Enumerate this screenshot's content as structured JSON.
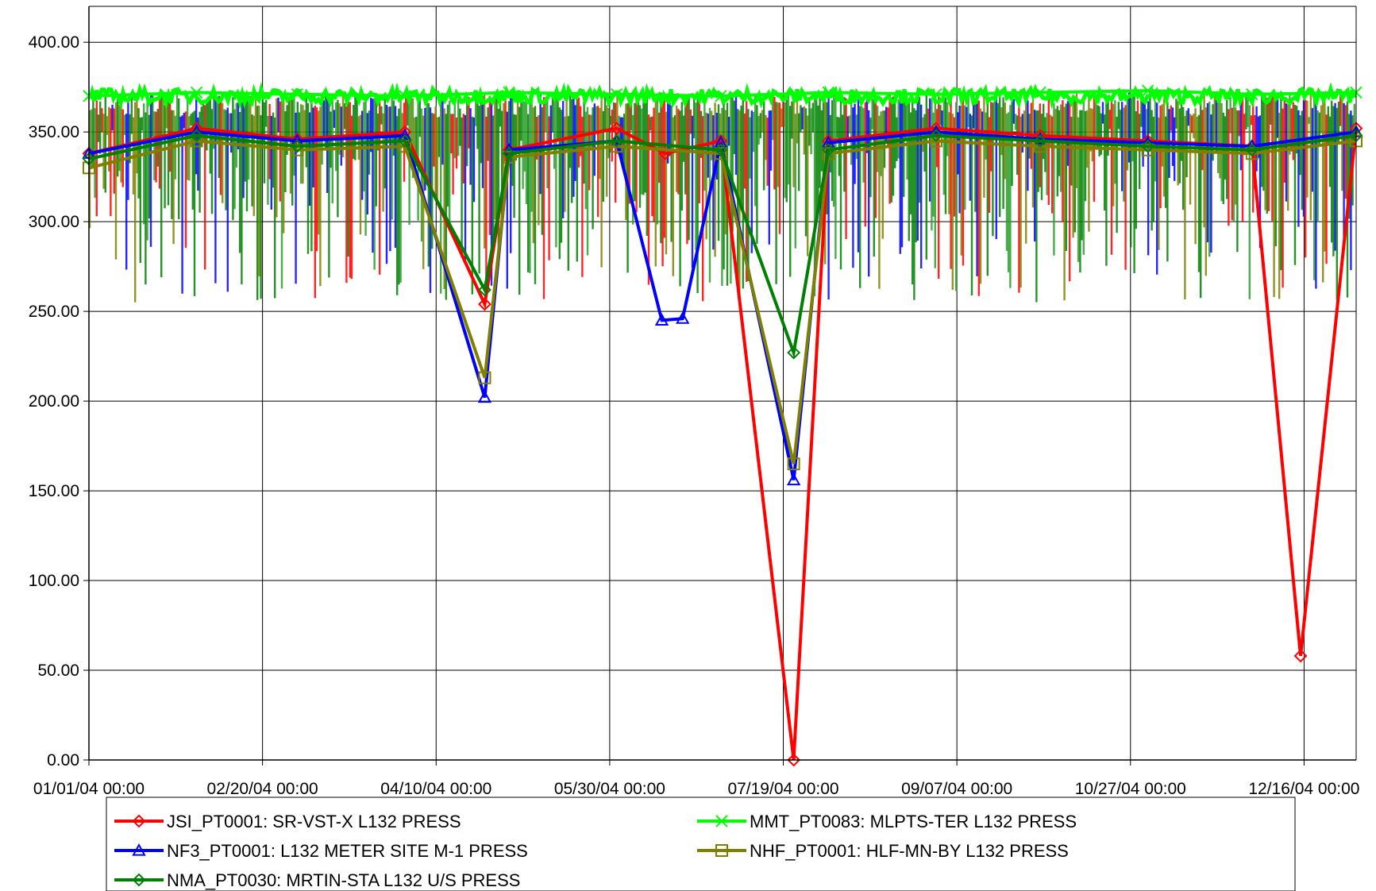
{
  "chart_data": {
    "type": "line",
    "title": "",
    "xlabel": "",
    "ylabel": "",
    "ylim": [
      0,
      420
    ],
    "xlim": [
      "2004-01-01",
      "2004-12-31"
    ],
    "yticks": [
      0,
      50,
      100,
      150,
      200,
      250,
      300,
      350,
      400
    ],
    "ytick_labels": [
      "0.00",
      "50.00",
      "100.00",
      "150.00",
      "200.00",
      "250.00",
      "300.00",
      "350.00",
      "400.00"
    ],
    "xticks": [
      "2004-01-01",
      "2004-02-20",
      "2004-04-10",
      "2004-05-30",
      "2004-07-19",
      "2004-09-07",
      "2004-10-27",
      "2004-12-16"
    ],
    "xtick_labels": [
      "01/01/04 00:00",
      "02/20/04 00:00",
      "04/10/04 00:00",
      "05/30/04 00:00",
      "07/19/04 00:00",
      "09/07/04 00:00",
      "10/27/04 00:00",
      "12/16/04 00:00"
    ],
    "grid": true,
    "legend_position": "bottom",
    "series": [
      {
        "name": "JSI_PT0001:  SR-VST-X L132 PRESS",
        "color": "#ff0000",
        "marker": "diamond",
        "x": [
          "2004-01-01",
          "2004-02-01",
          "2004-03-01",
          "2004-04-01",
          "2004-04-24",
          "2004-05-01",
          "2004-06-01",
          "2004-06-15",
          "2004-07-01",
          "2004-07-22",
          "2004-08-01",
          "2004-09-01",
          "2004-10-01",
          "2004-11-01",
          "2004-12-01",
          "2004-12-15",
          "2004-12-31"
        ],
        "y": [
          338,
          352,
          346,
          350,
          254,
          340,
          352,
          338,
          345,
          0,
          345,
          352,
          348,
          345,
          342,
          58,
          352
        ]
      },
      {
        "name": "MMT_PT0083:  MLPTS-TER L132 PRESS",
        "color": "#00ff00",
        "marker": "x",
        "x": [
          "2004-01-01",
          "2004-02-01",
          "2004-03-01",
          "2004-04-01",
          "2004-05-01",
          "2004-06-01",
          "2004-07-01",
          "2004-08-01",
          "2004-09-01",
          "2004-10-01",
          "2004-11-01",
          "2004-12-01",
          "2004-12-31"
        ],
        "y": [
          370,
          372,
          371,
          370,
          372,
          371,
          370,
          372,
          371,
          372,
          373,
          371,
          372
        ]
      },
      {
        "name": "NF3_PT0001:  L132 METER SITE M-1 PRESS",
        "color": "#0000ff",
        "marker": "triangle",
        "x": [
          "2004-01-01",
          "2004-02-01",
          "2004-03-01",
          "2004-04-01",
          "2004-04-24",
          "2004-05-01",
          "2004-06-01",
          "2004-06-14",
          "2004-06-20",
          "2004-07-01",
          "2004-07-22",
          "2004-08-01",
          "2004-09-01",
          "2004-10-01",
          "2004-11-01",
          "2004-12-01",
          "2004-12-31"
        ],
        "y": [
          338,
          350,
          345,
          348,
          202,
          340,
          345,
          245,
          246,
          344,
          156,
          344,
          350,
          346,
          344,
          342,
          350
        ]
      },
      {
        "name": "NHF_PT0001:  HLF-MN-BY L132 PRESS",
        "color": "#808000",
        "marker": "square",
        "x": [
          "2004-01-01",
          "2004-02-01",
          "2004-03-01",
          "2004-04-01",
          "2004-04-24",
          "2004-05-01",
          "2004-06-01",
          "2004-07-01",
          "2004-07-22",
          "2004-08-01",
          "2004-09-01",
          "2004-10-01",
          "2004-11-01",
          "2004-12-01",
          "2004-12-31"
        ],
        "y": [
          330,
          345,
          340,
          342,
          213,
          336,
          342,
          338,
          165,
          338,
          345,
          342,
          340,
          338,
          345
        ]
      },
      {
        "name": "NMA_PT0030:  MRTIN-STA L132 U/S PRESS",
        "color": "#008000",
        "marker": "diamond",
        "x": [
          "2004-01-01",
          "2004-02-01",
          "2004-03-01",
          "2004-04-01",
          "2004-04-24",
          "2004-05-01",
          "2004-06-01",
          "2004-07-01",
          "2004-07-22",
          "2004-08-01",
          "2004-09-01",
          "2004-10-01",
          "2004-11-01",
          "2004-12-01",
          "2004-12-31"
        ],
        "y": [
          335,
          348,
          342,
          345,
          262,
          338,
          345,
          340,
          227,
          340,
          348,
          345,
          342,
          340,
          348
        ]
      }
    ]
  }
}
